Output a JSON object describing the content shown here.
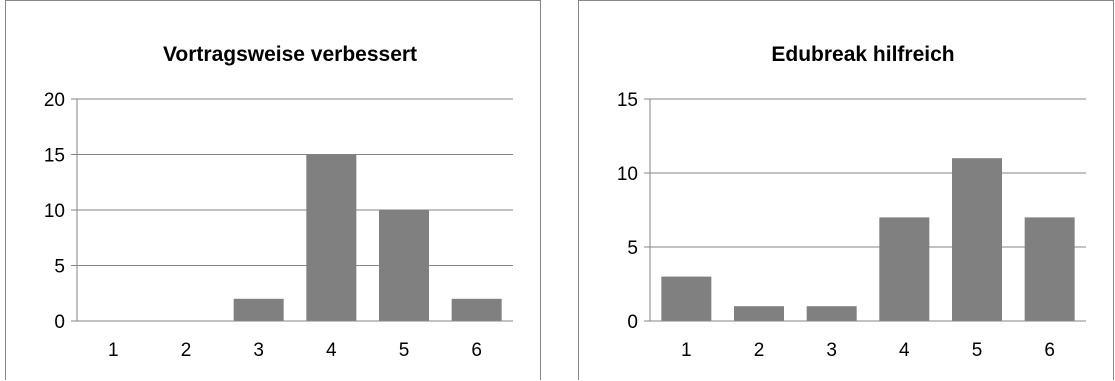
{
  "chart_data": [
    {
      "type": "bar",
      "title": "Vortragsweise verbessert",
      "categories": [
        "1",
        "2",
        "3",
        "4",
        "5",
        "6"
      ],
      "values": [
        0,
        0,
        2,
        15,
        10,
        2
      ],
      "yticks": [
        "0",
        "5",
        "10",
        "15",
        "20"
      ],
      "ylim": [
        0,
        20
      ],
      "grid": true,
      "bar_color": "#808080"
    },
    {
      "type": "bar",
      "title": "Edubreak hilfreich",
      "categories": [
        "1",
        "2",
        "3",
        "4",
        "5",
        "6"
      ],
      "values": [
        3,
        1,
        1,
        7,
        11,
        7
      ],
      "yticks": [
        "0",
        "5",
        "10",
        "15"
      ],
      "ylim": [
        0,
        15
      ],
      "grid": true,
      "bar_color": "#808080"
    }
  ]
}
